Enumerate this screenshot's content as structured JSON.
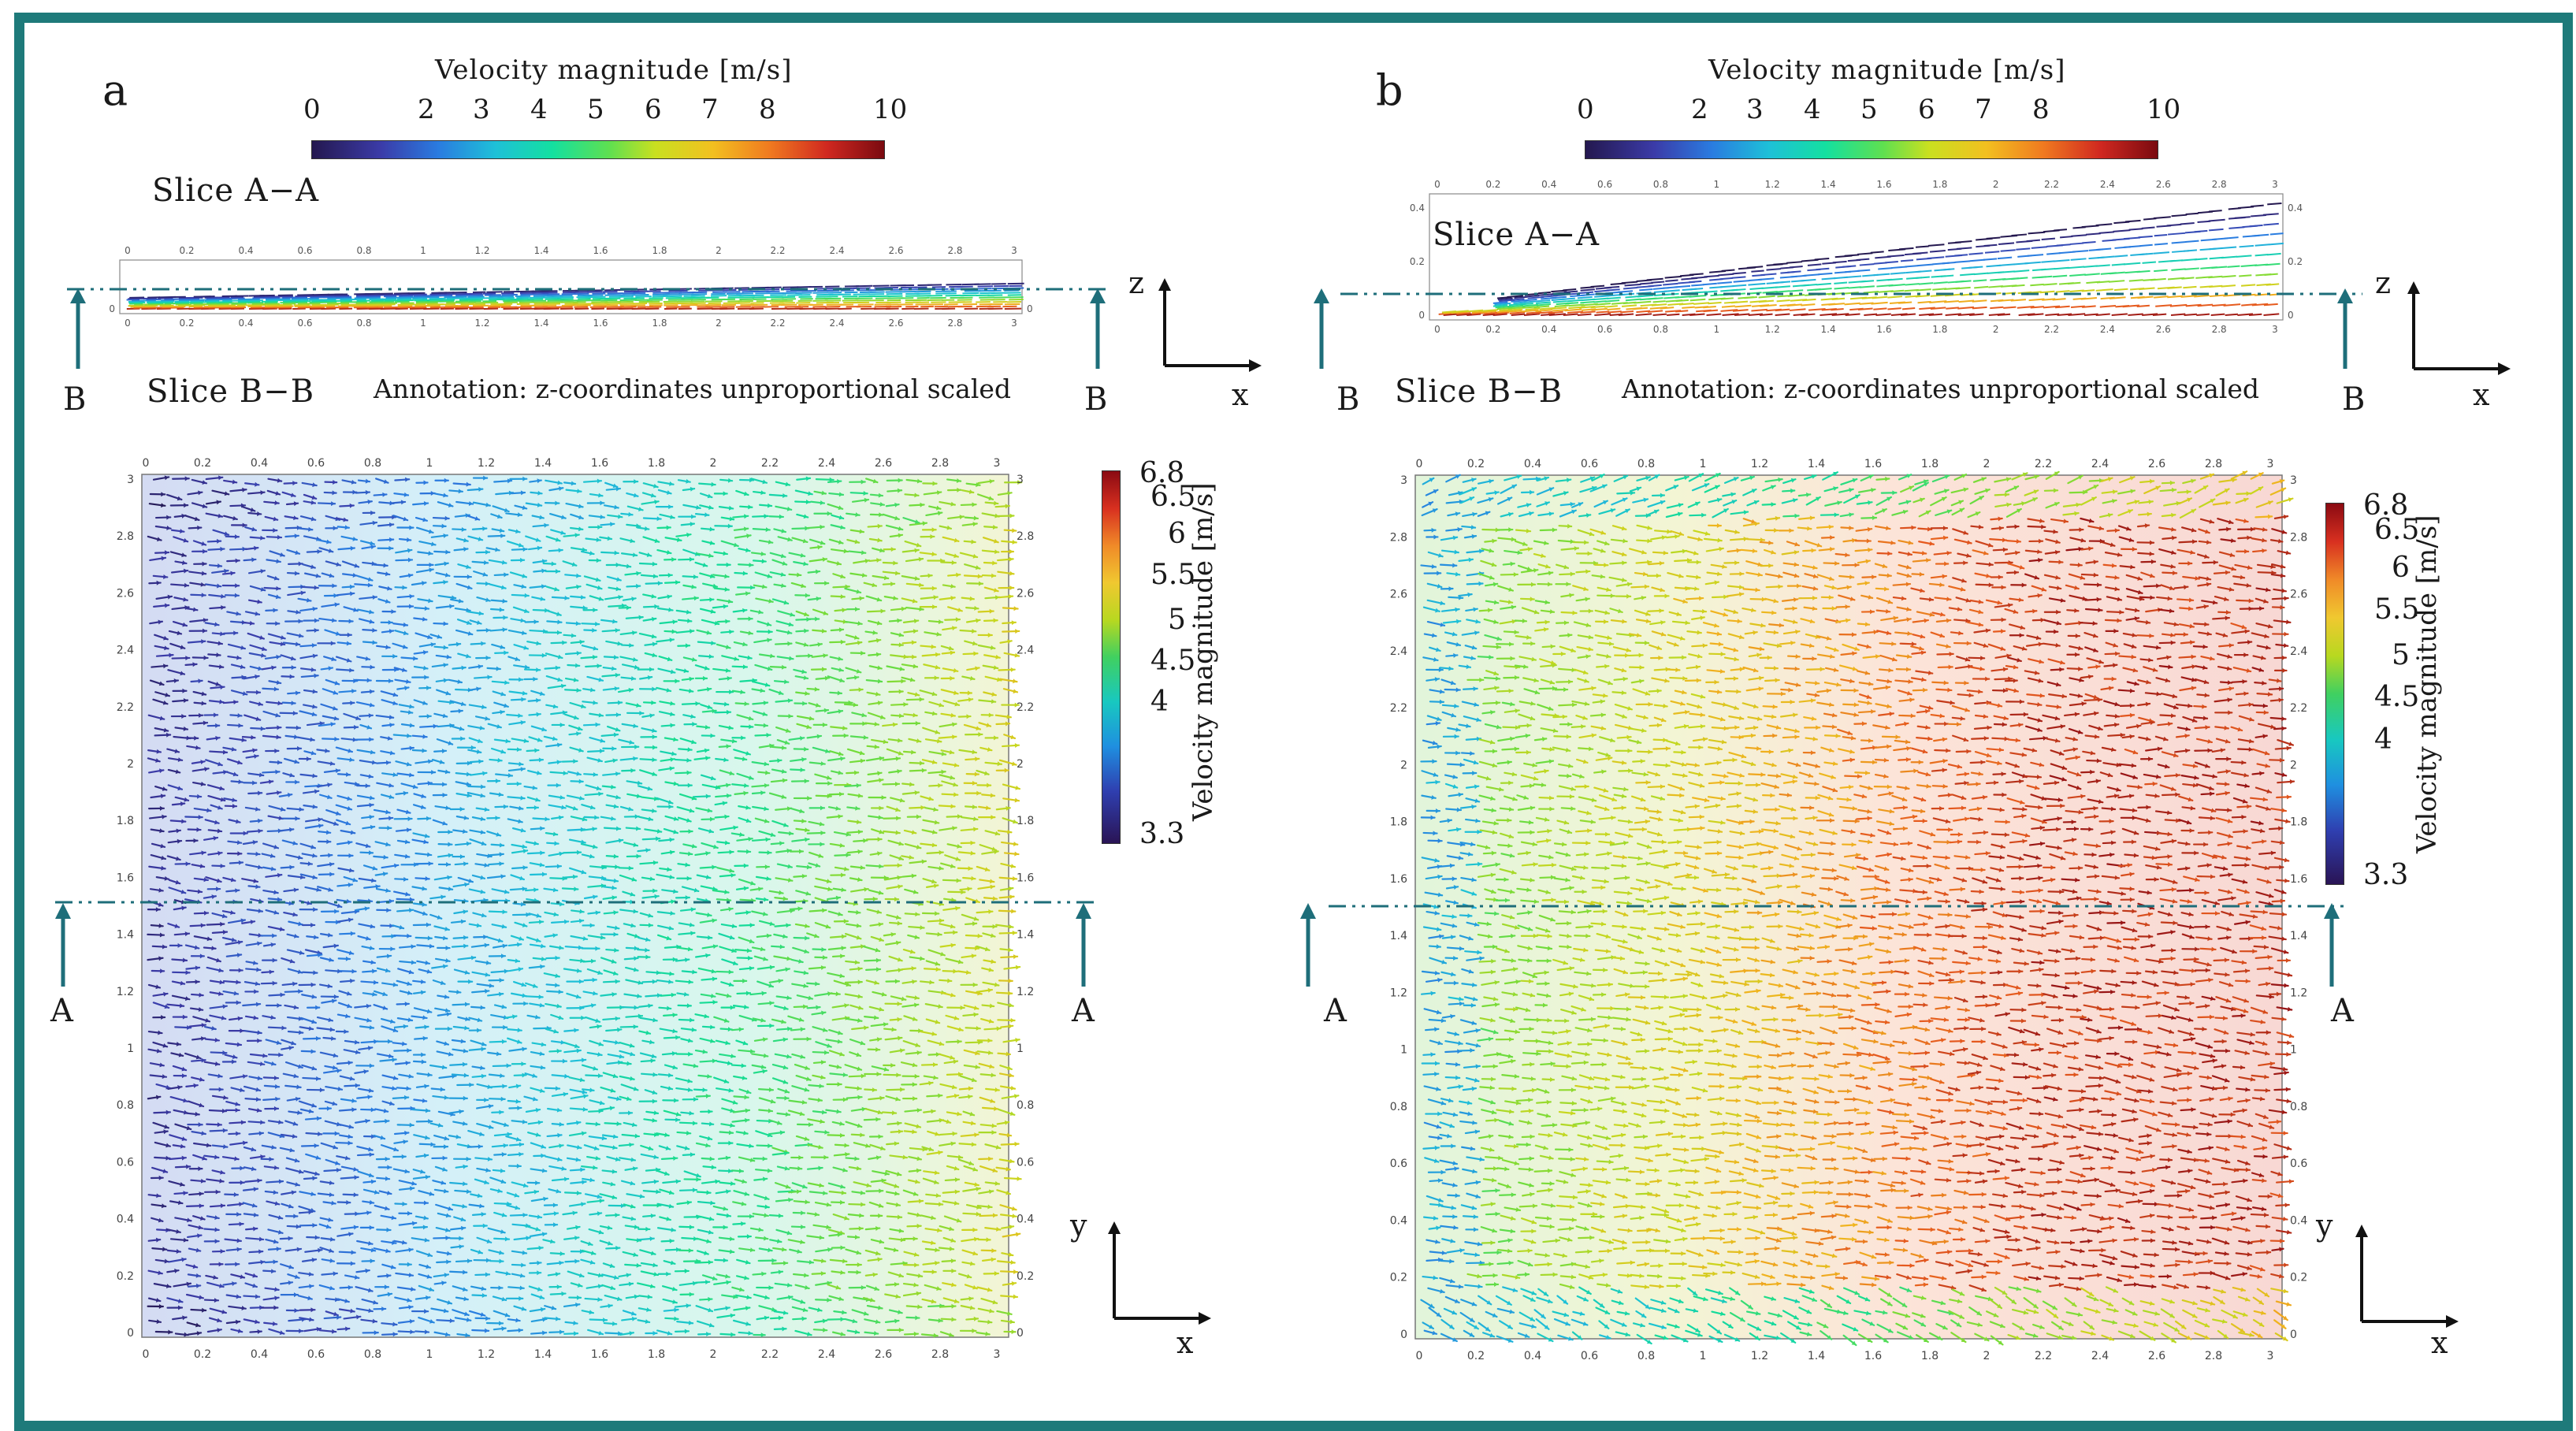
{
  "panels": [
    {
      "letter": "a",
      "hbar_title": "Velocity magnitude [m/s]",
      "hbar_ticks": [
        "0",
        "2",
        "3",
        "4",
        "5",
        "6",
        "7",
        "8",
        "10"
      ],
      "slice_aa_label": "Slice A−A",
      "slice_bb_label": "Slice B−B",
      "annotation": "Annotation: z-coordinates unproportional scaled",
      "section_b": "B",
      "section_a": "A",
      "axes_top": {
        "vertical": "z",
        "horizontal": "x"
      },
      "axes_bottom": {
        "vertical": "y",
        "horizontal": "x"
      },
      "vbar_title": "Velocity magnitude [m/s]",
      "vbar_ticks": [
        "6.8",
        "6.5",
        "6",
        "5.5",
        "5",
        "4.5",
        "4",
        "3.3"
      ]
    },
    {
      "letter": "b",
      "hbar_title": "Velocity magnitude [m/s]",
      "hbar_ticks": [
        "0",
        "2",
        "3",
        "4",
        "5",
        "6",
        "7",
        "8",
        "10"
      ],
      "slice_aa_label": "Slice A−A",
      "slice_bb_label": "Slice B−B",
      "annotation": "Annotation: z-coordinates unproportional scaled",
      "section_b": "B",
      "section_a": "A",
      "axes_top": {
        "vertical": "z",
        "horizontal": "x"
      },
      "axes_bottom": {
        "vertical": "y",
        "horizontal": "x"
      },
      "vbar_title": "Velocity magnitude [m/s]",
      "vbar_ticks": [
        "6.8",
        "6.5",
        "6",
        "5.5",
        "5",
        "4.5",
        "4",
        "3.3"
      ]
    }
  ],
  "plot_ticks_x": [
    "0",
    "0.2",
    "0.4",
    "0.6",
    "0.8",
    "1",
    "1.2",
    "1.4",
    "1.6",
    "1.8",
    "2",
    "2.2",
    "2.4",
    "2.6",
    "2.8",
    "3"
  ],
  "plot_ticks_y": [
    "0",
    "0.2",
    "0.4",
    "0.6",
    "0.8",
    "1",
    "1.2",
    "1.4",
    "1.6",
    "1.8",
    "2",
    "2.2",
    "2.4",
    "2.6",
    "2.8",
    "3"
  ],
  "slice_ticks_z_a": [
    "0"
  ],
  "slice_ticks_z_b": [
    "0",
    "0.2",
    "0.4"
  ],
  "colors": {
    "frame": "#1e7a7a",
    "section_line": "#1e6e7a"
  }
}
